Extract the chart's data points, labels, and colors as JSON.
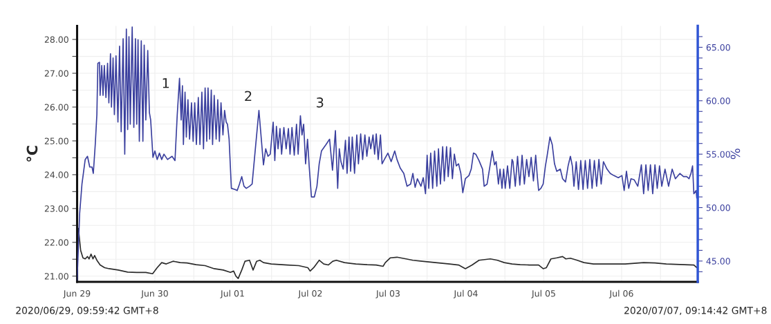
{
  "chart_data": {
    "type": "line",
    "ylabel": "°C",
    "y2label": "%",
    "xlim": [
      "2020-06-29T00:00",
      "2020-07-06T23:30"
    ],
    "ylim": [
      20.83,
      28.4
    ],
    "y2lim": [
      43.05,
      67
    ],
    "xticks": [
      {
        "value": "2020-06-29",
        "label": "Jun 29"
      },
      {
        "value": "2020-06-29T12:00",
        "label": null
      },
      {
        "value": "2020-06-30",
        "label": "Jun 30"
      },
      {
        "value": "2020-06-30T12:00",
        "label": null
      },
      {
        "value": "2020-07-01",
        "label": "Jul 01"
      },
      {
        "value": "2020-07-01T12:00",
        "label": null
      },
      {
        "value": "2020-07-02",
        "label": "Jul 02"
      },
      {
        "value": "2020-07-02T12:00",
        "label": null
      },
      {
        "value": "2020-07-03",
        "label": "Jul 03"
      },
      {
        "value": "2020-07-03T12:00",
        "label": null
      },
      {
        "value": "2020-07-04",
        "label": "Jul 04"
      },
      {
        "value": "2020-07-04T12:00",
        "label": null
      },
      {
        "value": "2020-07-05",
        "label": "Jul 05"
      },
      {
        "value": "2020-07-05T12:00",
        "label": null
      },
      {
        "value": "2020-07-06",
        "label": "Jul 06"
      },
      {
        "value": "2020-07-06T12:00",
        "label": null
      }
    ],
    "yticks": [
      {
        "value": 21,
        "label": "21.00"
      },
      {
        "value": 21.5,
        "label": null
      },
      {
        "value": 22,
        "label": "22.00"
      },
      {
        "value": 22.5,
        "label": null
      },
      {
        "value": 23,
        "label": "23.00"
      },
      {
        "value": 23.5,
        "label": null
      },
      {
        "value": 24,
        "label": "24.00"
      },
      {
        "value": 24.5,
        "label": null
      },
      {
        "value": 25,
        "label": "25.00"
      },
      {
        "value": 25.5,
        "label": null
      },
      {
        "value": 26,
        "label": "26.00"
      },
      {
        "value": 26.5,
        "label": null
      },
      {
        "value": 27,
        "label": "27.00"
      },
      {
        "value": 27.5,
        "label": null
      },
      {
        "value": 28,
        "label": "28.00"
      }
    ],
    "y2ticks": [
      {
        "value": 44,
        "label": null
      },
      {
        "value": 45,
        "label": "45.00"
      },
      {
        "value": 46,
        "label": null
      },
      {
        "value": 47,
        "label": null
      },
      {
        "value": 48,
        "label": null
      },
      {
        "value": 49,
        "label": null
      },
      {
        "value": 50,
        "label": "50.00"
      },
      {
        "value": 51,
        "label": null
      },
      {
        "value": 52,
        "label": null
      },
      {
        "value": 53,
        "label": null
      },
      {
        "value": 54,
        "label": null
      },
      {
        "value": 55,
        "label": "55.00"
      },
      {
        "value": 56,
        "label": null
      },
      {
        "value": 57,
        "label": null
      },
      {
        "value": 58,
        "label": null
      },
      {
        "value": 59,
        "label": null
      },
      {
        "value": 60,
        "label": "60.00"
      },
      {
        "value": 61,
        "label": null
      },
      {
        "value": 62,
        "label": null
      },
      {
        "value": 63,
        "label": null
      },
      {
        "value": 64,
        "label": null
      },
      {
        "value": 65,
        "label": "65.00"
      },
      {
        "value": 66,
        "label": null
      }
    ],
    "grid": true,
    "series": [
      {
        "color": "#2b2b2b",
        "x": [
          "2020-06-29T00:24",
          "2020-06-29T01:06",
          "2020-06-29T01:48",
          "2020-06-29T02:30",
          "2020-06-29T03:12",
          "2020-06-29T03:42",
          "2020-06-29T04:18",
          "2020-06-29T04:54",
          "2020-06-29T05:24",
          "2020-06-29T06:06",
          "2020-06-29T07:06",
          "2020-06-29T08:30",
          "2020-06-29T09:54",
          "2020-06-29T12:42",
          "2020-06-29T15:36",
          "2020-06-29T18:24",
          "2020-06-29T21:12",
          "2020-06-29T23:18",
          "2020-06-30T00:42",
          "2020-06-30T02:06",
          "2020-06-30T03:30",
          "2020-06-30T05:36",
          "2020-06-30T07:48",
          "2020-06-30T09:54",
          "2020-06-30T12:42",
          "2020-06-30T15:30",
          "2020-06-30T18:18",
          "2020-06-30T21:06",
          "2020-06-30T23:18",
          "2020-07-01T00:18",
          "2020-07-01T01:00",
          "2020-07-01T01:42",
          "2020-07-01T02:48",
          "2020-07-01T03:48",
          "2020-07-01T05:12",
          "2020-07-01T06:18",
          "2020-07-01T07:24",
          "2020-07-01T08:24",
          "2020-07-01T09:30",
          "2020-07-01T11:54",
          "2020-07-01T16:54",
          "2020-07-01T20:24",
          "2020-07-01T23:12",
          "2020-07-01T23:54",
          "2020-07-02T01:00",
          "2020-07-02T02:42",
          "2020-07-02T04:06",
          "2020-07-02T05:30",
          "2020-07-02T06:54",
          "2020-07-02T08:00",
          "2020-07-02T10:30",
          "2020-07-02T14:00",
          "2020-07-02T17:30",
          "2020-07-02T20:18",
          "2020-07-02T22:24",
          "2020-07-02T23:06",
          "2020-07-03T00:36",
          "2020-07-03T02:42",
          "2020-07-03T05:30",
          "2020-07-03T07:36",
          "2020-07-03T10:24",
          "2020-07-03T14:36",
          "2020-07-03T18:54",
          "2020-07-03T21:42",
          "2020-07-03T23:48",
          "2020-07-04T01:54",
          "2020-07-04T04:00",
          "2020-07-04T07:30",
          "2020-07-04T09:42",
          "2020-07-04T11:48",
          "2020-07-04T14:12",
          "2020-07-04T16:42",
          "2020-07-04T19:30",
          "2020-07-04T22:24",
          "2020-07-04T23:48",
          "2020-07-05T00:48",
          "2020-07-05T02:12",
          "2020-07-05T04:00",
          "2020-07-05T05:48",
          "2020-07-05T06:48",
          "2020-07-05T08:12",
          "2020-07-05T10:18",
          "2020-07-05T12:24",
          "2020-07-05T15:18",
          "2020-07-05T20:12",
          "2020-07-06T01:06",
          "2020-07-06T06:48",
          "2020-07-06T10:18",
          "2020-07-06T13:48",
          "2020-07-06T19:24",
          "2020-07-06T22:18",
          "2020-07-06T23:12"
        ],
        "values": [
          22.41,
          21.76,
          21.54,
          21.51,
          21.58,
          21.51,
          21.65,
          21.51,
          21.61,
          21.47,
          21.33,
          21.25,
          21.22,
          21.18,
          21.12,
          21.11,
          21.11,
          21.07,
          21.25,
          21.4,
          21.36,
          21.44,
          21.4,
          21.39,
          21.34,
          21.31,
          21.22,
          21.18,
          21.11,
          21.15,
          21.0,
          20.93,
          21.18,
          21.44,
          21.47,
          21.18,
          21.44,
          21.47,
          21.4,
          21.36,
          21.33,
          21.31,
          21.25,
          21.15,
          21.25,
          21.47,
          21.36,
          21.33,
          21.44,
          21.47,
          21.4,
          21.36,
          21.34,
          21.33,
          21.29,
          21.4,
          21.54,
          21.56,
          21.51,
          21.47,
          21.44,
          21.4,
          21.36,
          21.33,
          21.22,
          21.33,
          21.47,
          21.51,
          21.47,
          21.4,
          21.36,
          21.34,
          21.33,
          21.33,
          21.22,
          21.25,
          21.51,
          21.54,
          21.58,
          21.51,
          21.53,
          21.47,
          21.4,
          21.36,
          21.36,
          21.36,
          21.4,
          21.39,
          21.36,
          21.34,
          21.33,
          21.25
        ]
      },
      {
        "color": "#3a3f9e",
        "axis": "y2",
        "x": [
          "2020-06-29T00:00",
          "2020-06-29T00:48",
          "2020-06-29T01:30",
          "2020-06-29T02:30",
          "2020-06-29T03:12",
          "2020-06-29T03:54",
          "2020-06-29T04:36",
          "2020-06-29T05:00",
          "2020-06-29T05:36",
          "2020-06-29T06:06",
          "2020-06-29T06:24",
          "2020-06-29T06:54",
          "2020-06-29T07:06",
          "2020-06-29T07:36",
          "2020-06-29T08:00",
          "2020-06-29T08:24",
          "2020-06-29T08:54",
          "2020-06-29T09:24",
          "2020-06-29T09:48",
          "2020-06-29T10:18",
          "2020-06-29T10:36",
          "2020-06-29T11:06",
          "2020-06-29T11:30",
          "2020-06-29T12:00",
          "2020-06-29T12:36",
          "2020-06-29T13:06",
          "2020-06-29T13:36",
          "2020-06-29T14:12",
          "2020-06-29T14:42",
          "2020-06-29T15:12",
          "2020-06-29T15:36",
          "2020-06-29T16:00",
          "2020-06-29T16:24",
          "2020-06-29T17:00",
          "2020-06-29T17:30",
          "2020-06-29T18:00",
          "2020-06-29T18:24",
          "2020-06-29T18:48",
          "2020-06-29T19:12",
          "2020-06-29T19:48",
          "2020-06-29T20:18",
          "2020-06-29T20:42",
          "2020-06-29T21:12",
          "2020-06-29T21:48",
          "2020-06-29T22:18",
          "2020-06-29T22:42",
          "2020-06-29T23:24",
          "2020-06-30T00:00",
          "2020-06-30T00:42",
          "2020-06-30T01:24",
          "2020-06-30T02:06",
          "2020-06-30T02:48",
          "2020-06-30T03:54",
          "2020-06-30T05:18",
          "2020-06-30T06:12",
          "2020-06-30T06:54",
          "2020-06-30T07:36",
          "2020-06-30T08:06",
          "2020-06-30T08:30",
          "2020-06-30T08:48",
          "2020-06-30T09:18",
          "2020-06-30T09:42",
          "2020-06-30T10:12",
          "2020-06-30T10:42",
          "2020-06-30T11:18",
          "2020-06-30T11:48",
          "2020-06-30T12:18",
          "2020-06-30T12:48",
          "2020-06-30T13:24",
          "2020-06-30T13:54",
          "2020-06-30T14:30",
          "2020-06-30T15:00",
          "2020-06-30T15:30",
          "2020-06-30T16:00",
          "2020-06-30T16:24",
          "2020-06-30T16:54",
          "2020-06-30T17:24",
          "2020-06-30T17:48",
          "2020-06-30T18:18",
          "2020-06-30T18:54",
          "2020-06-30T19:24",
          "2020-06-30T19:54",
          "2020-06-30T20:24",
          "2020-06-30T21:00",
          "2020-06-30T21:30",
          "2020-06-30T22:00",
          "2020-06-30T22:24",
          "2020-06-30T22:54",
          "2020-06-30T23:36",
          "2020-07-01T00:42",
          "2020-07-01T01:24",
          "2020-07-01T02:06",
          "2020-07-01T02:48",
          "2020-07-01T03:30",
          "2020-07-01T04:12",
          "2020-07-01T05:12",
          "2020-07-01T06:00",
          "2020-07-01T07:00",
          "2020-07-01T08:06",
          "2020-07-01T09:30",
          "2020-07-01T10:12",
          "2020-07-01T10:54",
          "2020-07-01T11:36",
          "2020-07-01T12:30",
          "2020-07-01T13:00",
          "2020-07-01T13:30",
          "2020-07-01T14:00",
          "2020-07-01T14:36",
          "2020-07-01T15:06",
          "2020-07-01T15:48",
          "2020-07-01T16:30",
          "2020-07-01T17:12",
          "2020-07-01T17:42",
          "2020-07-01T18:18",
          "2020-07-01T19:00",
          "2020-07-01T19:42",
          "2020-07-01T20:12",
          "2020-07-01T20:54",
          "2020-07-01T21:24",
          "2020-07-01T21:54",
          "2020-07-01T22:30",
          "2020-07-01T23:06",
          "2020-07-01T23:36",
          "2020-07-02T00:18",
          "2020-07-02T01:12",
          "2020-07-02T02:00",
          "2020-07-02T02:42",
          "2020-07-02T03:24",
          "2020-07-02T04:48",
          "2020-07-02T05:54",
          "2020-07-02T06:48",
          "2020-07-02T07:42",
          "2020-07-02T08:24",
          "2020-07-02T08:54",
          "2020-07-02T09:24",
          "2020-07-02T10:06",
          "2020-07-02T10:48",
          "2020-07-02T11:18",
          "2020-07-02T11:54",
          "2020-07-02T12:24",
          "2020-07-02T12:54",
          "2020-07-02T13:36",
          "2020-07-02T14:18",
          "2020-07-02T14:48",
          "2020-07-02T15:30",
          "2020-07-02T16:06",
          "2020-07-02T16:48",
          "2020-07-02T17:24",
          "2020-07-02T18:06",
          "2020-07-02T18:36",
          "2020-07-02T19:18",
          "2020-07-02T19:48",
          "2020-07-02T20:18",
          "2020-07-02T20:54",
          "2020-07-02T21:36",
          "2020-07-02T22:06",
          "2020-07-02T22:48",
          "2020-07-02T23:54",
          "2020-07-03T00:54",
          "2020-07-03T02:00",
          "2020-07-03T02:42",
          "2020-07-03T03:42",
          "2020-07-03T04:48",
          "2020-07-03T05:48",
          "2020-07-03T06:54",
          "2020-07-03T07:36",
          "2020-07-03T08:18",
          "2020-07-03T09:00",
          "2020-07-03T10:06",
          "2020-07-03T10:48",
          "2020-07-03T11:30",
          "2020-07-03T12:00",
          "2020-07-03T12:30",
          "2020-07-03T13:06",
          "2020-07-03T13:42",
          "2020-07-03T14:18",
          "2020-07-03T15:00",
          "2020-07-03T15:30",
          "2020-07-03T16:06",
          "2020-07-03T16:48",
          "2020-07-03T17:18",
          "2020-07-03T18:00",
          "2020-07-03T18:30",
          "2020-07-03T19:12",
          "2020-07-03T19:48",
          "2020-07-03T20:24",
          "2020-07-03T21:00",
          "2020-07-03T21:42",
          "2020-07-03T22:24",
          "2020-07-03T23:00",
          "2020-07-03T23:48",
          "2020-07-04T00:54",
          "2020-07-04T01:36",
          "2020-07-04T02:18",
          "2020-07-04T03:00",
          "2020-07-04T04:00",
          "2020-07-04T05:06",
          "2020-07-04T05:36",
          "2020-07-04T06:30",
          "2020-07-04T07:30",
          "2020-07-04T08:06",
          "2020-07-04T08:48",
          "2020-07-04T09:18",
          "2020-07-04T10:00",
          "2020-07-04T10:30",
          "2020-07-04T11:06",
          "2020-07-04T11:36",
          "2020-07-04T12:06",
          "2020-07-04T12:48",
          "2020-07-04T13:30",
          "2020-07-04T14:12",
          "2020-07-04T14:30",
          "2020-07-04T15:12",
          "2020-07-04T15:54",
          "2020-07-04T16:36",
          "2020-07-04T17:18",
          "2020-07-04T18:00",
          "2020-07-04T18:42",
          "2020-07-04T19:24",
          "2020-07-04T20:06",
          "2020-07-04T20:48",
          "2020-07-04T21:30",
          "2020-07-04T22:00",
          "2020-07-04T22:24",
          "2020-07-04T23:06",
          "2020-07-04T23:48",
          "2020-07-05T00:30",
          "2020-07-05T01:00",
          "2020-07-05T01:54",
          "2020-07-05T02:36",
          "2020-07-05T03:18",
          "2020-07-05T04:00",
          "2020-07-05T05:06",
          "2020-07-05T05:48",
          "2020-07-05T06:42",
          "2020-07-05T07:30",
          "2020-07-05T08:12",
          "2020-07-05T08:48",
          "2020-07-05T09:18",
          "2020-07-05T10:00",
          "2020-07-05T10:42",
          "2020-07-05T11:24",
          "2020-07-05T12:06",
          "2020-07-05T12:48",
          "2020-07-05T13:30",
          "2020-07-05T14:12",
          "2020-07-05T14:54",
          "2020-07-05T15:36",
          "2020-07-05T16:18",
          "2020-07-05T17:00",
          "2020-07-05T17:42",
          "2020-07-05T18:24",
          "2020-07-05T19:30",
          "2020-07-05T20:30",
          "2020-07-05T21:36",
          "2020-07-05T23:00",
          "2020-07-06T00:06",
          "2020-07-06T00:48",
          "2020-07-06T01:30",
          "2020-07-06T02:12",
          "2020-07-06T02:54",
          "2020-07-06T03:54",
          "2020-07-06T05:00",
          "2020-07-06T06:06",
          "2020-07-06T06:48",
          "2020-07-06T07:30",
          "2020-07-06T08:12",
          "2020-07-06T08:54",
          "2020-07-06T09:36",
          "2020-07-06T10:18",
          "2020-07-06T11:00",
          "2020-07-06T11:42",
          "2020-07-06T12:24",
          "2020-07-06T13:24",
          "2020-07-06T14:30",
          "2020-07-06T15:36",
          "2020-07-06T16:36",
          "2020-07-06T18:00",
          "2020-07-06T19:06",
          "2020-07-06T20:06",
          "2020-07-06T20:48",
          "2020-07-06T21:24",
          "2020-07-06T21:54",
          "2020-07-06T22:18",
          "2020-07-06T23:00",
          "2020-07-06T23:12"
        ],
        "values": [
          43.2,
          49.5,
          52.2,
          54.5,
          54.8,
          53.8,
          53.8,
          53.2,
          55.9,
          58.7,
          63.5,
          63.6,
          60.5,
          63.3,
          60.5,
          63.3,
          60.3,
          63.5,
          59.8,
          64.4,
          59.4,
          64.0,
          58.7,
          64.2,
          58.0,
          65.1,
          57.1,
          65.8,
          55.0,
          66.7,
          57.3,
          66.0,
          57.8,
          66.9,
          57.5,
          65.8,
          57.8,
          65.7,
          56.2,
          65.6,
          56.2,
          65.2,
          58.2,
          64.7,
          58.9,
          58.2,
          54.7,
          55.3,
          54.5,
          55.1,
          54.5,
          55.0,
          54.5,
          54.8,
          54.4,
          58.7,
          62.1,
          58.2,
          61.4,
          55.9,
          60.8,
          56.6,
          60.1,
          56.4,
          59.8,
          56.2,
          59.8,
          55.9,
          60.3,
          55.9,
          60.8,
          55.5,
          61.2,
          56.2,
          61.2,
          56.4,
          61.0,
          55.9,
          60.5,
          56.4,
          60.1,
          56.2,
          59.8,
          56.8,
          59.1,
          58.0,
          57.8,
          56.4,
          51.8,
          51.7,
          51.6,
          52.2,
          52.9,
          52.0,
          51.8,
          52.0,
          52.2,
          55.5,
          59.1,
          54.0,
          55.5,
          54.8,
          55.0,
          58.0,
          54.4,
          57.6,
          55.5,
          57.4,
          55.0,
          57.5,
          55.5,
          57.4,
          55.0,
          57.5,
          54.9,
          57.8,
          55.0,
          58.6,
          56.8,
          57.8,
          54.1,
          56.4,
          53.9,
          51.0,
          51.0,
          52.0,
          54.1,
          55.3,
          55.9,
          56.4,
          53.5,
          57.2,
          51.8,
          55.5,
          54.3,
          53.6,
          56.3,
          53.2,
          56.6,
          53.4,
          56.6,
          53.2,
          56.8,
          54.1,
          56.9,
          54.5,
          56.8,
          54.8,
          56.6,
          55.5,
          56.8,
          55.0,
          56.9,
          54.5,
          56.8,
          54.1,
          54.5,
          55.1,
          54.3,
          55.3,
          54.5,
          53.7,
          53.2,
          52.0,
          52.2,
          53.2,
          51.9,
          52.7,
          52.0,
          52.8,
          51.3,
          54.9,
          51.8,
          55.1,
          51.8,
          55.3,
          52.0,
          55.5,
          52.2,
          55.7,
          52.5,
          55.7,
          52.9,
          55.6,
          52.7,
          55.0,
          53.9,
          54.1,
          53.2,
          51.4,
          52.7,
          53.0,
          53.6,
          55.1,
          55.0,
          54.4,
          53.6,
          52.0,
          52.2,
          54.1,
          55.3,
          54.0,
          54.3,
          52.2,
          53.6,
          51.8,
          53.6,
          51.8,
          53.9,
          51.8,
          54.5,
          54.3,
          52.0,
          54.8,
          52.1,
          54.9,
          52.2,
          54.5,
          52.9,
          54.7,
          52.5,
          54.9,
          52.9,
          51.6,
          51.8,
          52.2,
          53.9,
          54.8,
          56.6,
          55.9,
          54.1,
          53.4,
          53.6,
          52.7,
          52.4,
          53.9,
          54.8,
          53.9,
          52.0,
          54.3,
          51.7,
          54.4,
          51.7,
          54.4,
          51.8,
          54.5,
          51.8,
          54.4,
          52.0,
          54.5,
          52.2,
          54.3,
          53.6,
          53.2,
          53.0,
          52.8,
          53.0,
          51.6,
          53.4,
          51.8,
          52.7,
          52.6,
          52.0,
          54.0,
          51.3,
          54.0,
          51.6,
          54.0,
          51.3,
          54.0,
          51.8,
          53.9,
          52.0,
          53.6,
          52.0,
          53.6,
          52.7,
          53.2,
          52.9,
          52.9,
          52.7,
          53.2,
          53.9,
          51.3,
          51.6,
          50.9
        ]
      }
    ],
    "annotations": [
      "1",
      "2",
      "3",
      "2020/06/29, 09:59:42 GMT+8",
      "2020/07/07, 09:14:42 GMT+8"
    ]
  }
}
